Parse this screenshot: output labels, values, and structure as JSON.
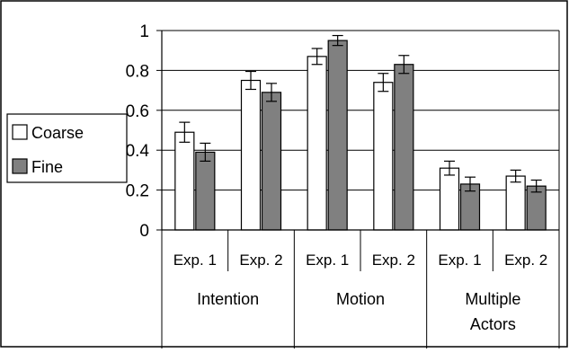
{
  "chart_data": {
    "type": "bar",
    "title": "",
    "xlabel": "",
    "ylabel": "",
    "ylim": [
      0,
      1
    ],
    "yticks": [
      {
        "value": 0,
        "label": "0"
      },
      {
        "value": 0.2,
        "label": "0.2"
      },
      {
        "value": 0.4,
        "label": "0.4"
      },
      {
        "value": 0.6,
        "label": "0.6"
      },
      {
        "value": 0.8,
        "label": "0.8"
      },
      {
        "value": 1,
        "label": "1"
      }
    ],
    "grid": true,
    "legend_position": "left",
    "categories": [
      "Exp. 1",
      "Exp. 2",
      "Exp. 1",
      "Exp. 2",
      "Exp. 1",
      "Exp. 2"
    ],
    "groups": [
      {
        "label_lines": [
          "Intention"
        ],
        "span": 2
      },
      {
        "label_lines": [
          "Motion"
        ],
        "span": 2
      },
      {
        "label_lines": [
          "Multiple",
          "Actors"
        ],
        "span": 2
      }
    ],
    "series": [
      {
        "name": "Coarse",
        "color": "#ffffff",
        "values": [
          0.49,
          0.75,
          0.87,
          0.74,
          0.31,
          0.27
        ],
        "errors": [
          0.05,
          0.045,
          0.04,
          0.045,
          0.035,
          0.03
        ]
      },
      {
        "name": "Fine",
        "color": "#808080",
        "values": [
          0.39,
          0.69,
          0.95,
          0.83,
          0.23,
          0.22
        ],
        "errors": [
          0.045,
          0.045,
          0.025,
          0.045,
          0.035,
          0.03
        ]
      }
    ]
  }
}
